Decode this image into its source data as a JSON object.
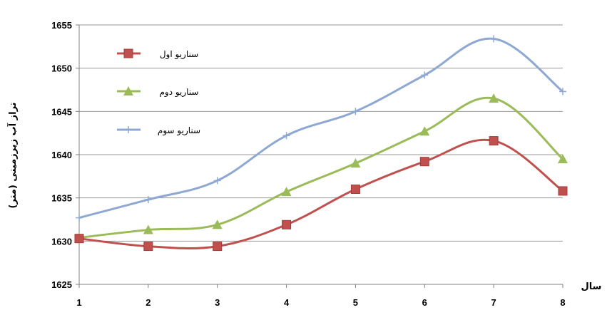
{
  "chart_data": {
    "type": "line",
    "xlabel": "سال",
    "ylabel": "تراز آب زیرزمینی (متر)",
    "ylim": [
      1625,
      1655
    ],
    "yticks": [
      1625,
      1630,
      1635,
      1640,
      1645,
      1650,
      1655
    ],
    "categories": [
      "1",
      "2",
      "3",
      "4",
      "5",
      "6",
      "7",
      "8"
    ],
    "grid": "horizontal",
    "legend_position": "top-left",
    "series": [
      {
        "name": "سناریو اول",
        "color": "#c0504d",
        "marker": "square",
        "values": [
          1630.3,
          1629.4,
          1629.4,
          1631.9,
          1636.0,
          1639.2,
          1641.6,
          1635.8
        ]
      },
      {
        "name": "سناریو دوم",
        "color": "#9bbb59",
        "marker": "triangle",
        "values": [
          1630.4,
          1631.3,
          1631.9,
          1635.7,
          1639.0,
          1642.7,
          1646.5,
          1639.5
        ]
      },
      {
        "name": "سناریو سوم",
        "color": "#8ea8d3",
        "marker": "plus",
        "values": [
          1632.7,
          1634.8,
          1637.0,
          1642.2,
          1645.0,
          1649.2,
          1653.4,
          1647.3
        ]
      }
    ]
  }
}
